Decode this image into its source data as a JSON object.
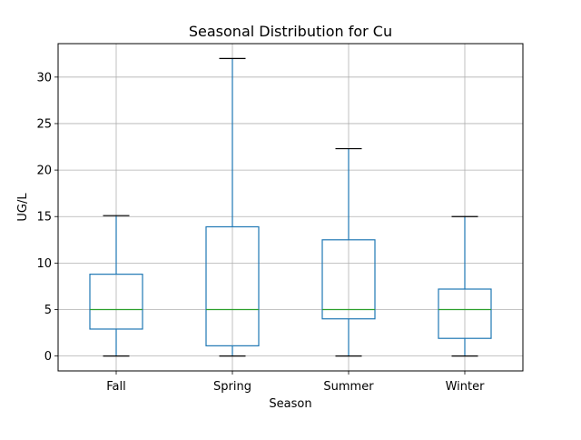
{
  "chart_data": {
    "type": "box",
    "title": "Seasonal Distribution for Cu",
    "xlabel": "Season",
    "ylabel": "UG/L",
    "categories": [
      "Fall",
      "Spring",
      "Summer",
      "Winter"
    ],
    "boxes": [
      {
        "category": "Fall",
        "whisker_low": 0,
        "q1": 2.9,
        "median": 5.0,
        "q3": 8.8,
        "whisker_high": 15.1
      },
      {
        "category": "Spring",
        "whisker_low": 0,
        "q1": 1.1,
        "median": 5.0,
        "q3": 13.9,
        "whisker_high": 32.0
      },
      {
        "category": "Summer",
        "whisker_low": 0,
        "q1": 4.0,
        "median": 5.0,
        "q3": 12.5,
        "whisker_high": 22.3
      },
      {
        "category": "Winter",
        "whisker_low": 0,
        "q1": 1.9,
        "median": 5.0,
        "q3": 7.2,
        "whisker_high": 15.0
      }
    ],
    "y_ticks": [
      0,
      5,
      10,
      15,
      20,
      25,
      30
    ],
    "ylim": [
      -1.6,
      33.6
    ],
    "grid": true,
    "colors": {
      "box": "#1f77b4",
      "median": "#2ca02c",
      "cap": "#000000",
      "grid": "#b0b0b0"
    }
  }
}
